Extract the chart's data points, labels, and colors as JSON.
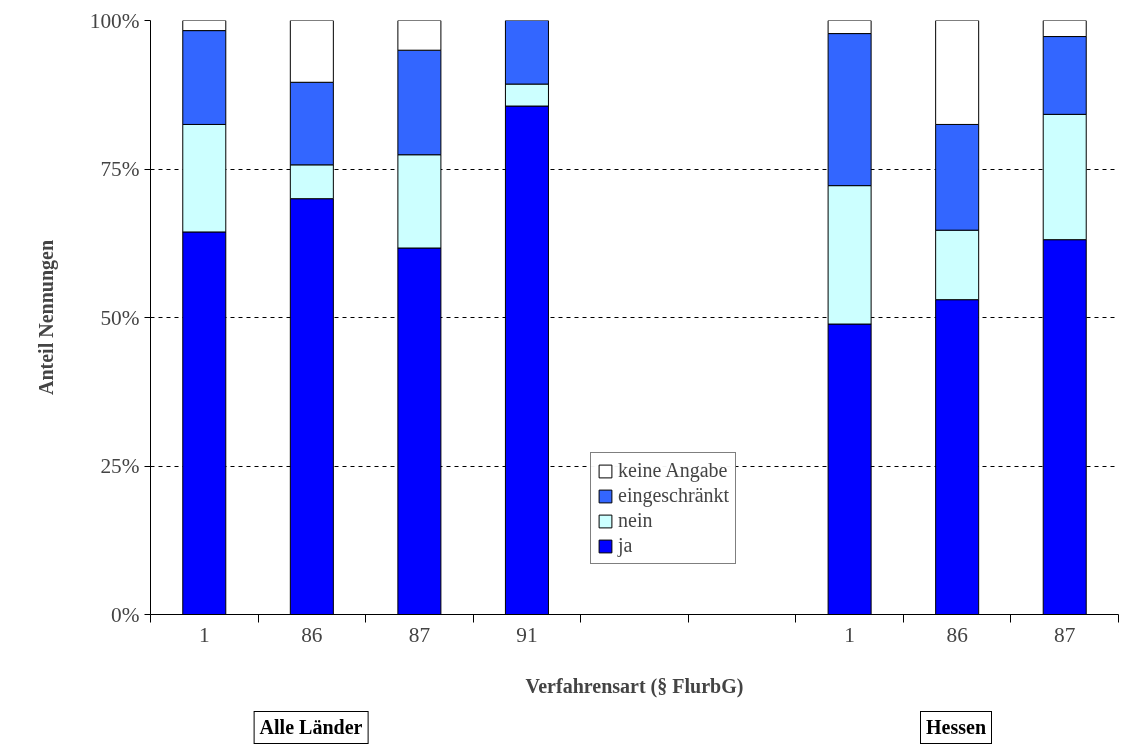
{
  "chart_data": {
    "type": "bar",
    "stacked": true,
    "categories": [
      "1",
      "86",
      "87",
      "91",
      null,
      null,
      "1",
      "86",
      "87"
    ],
    "series": [
      {
        "name": "ja",
        "color": "#0000ff",
        "values": [
          64.4,
          70.0,
          61.7,
          85.6,
          null,
          null,
          48.9,
          53.0,
          63.1
        ]
      },
      {
        "name": "nein",
        "color": "#ccffff",
        "values": [
          18.1,
          5.7,
          15.7,
          3.7,
          null,
          null,
          23.3,
          11.7,
          21.1
        ]
      },
      {
        "name": "eingeschränkt",
        "color": "#3366ff",
        "values": [
          15.8,
          13.9,
          17.6,
          10.7,
          null,
          null,
          25.6,
          17.8,
          13.1
        ]
      },
      {
        "name": "keine Angabe",
        "color": "#ffffff",
        "values": [
          1.7,
          10.4,
          5.0,
          null,
          null,
          null,
          2.2,
          17.5,
          2.7
        ]
      }
    ],
    "ylim": [
      0,
      100
    ],
    "yticks": [
      {
        "value": 0,
        "label": "0%"
      },
      {
        "value": 25,
        "label": "25%"
      },
      {
        "value": 50,
        "label": "50%"
      },
      {
        "value": 75,
        "label": "75%"
      },
      {
        "value": 100,
        "label": "100%"
      }
    ],
    "xlabel": "Verfahrensart (§ FlurbG)",
    "ylabel": "Anteil Nennungen",
    "annotations": [
      "Alle Länder",
      "Hessen"
    ],
    "grid": "y",
    "legend": "bottom"
  }
}
